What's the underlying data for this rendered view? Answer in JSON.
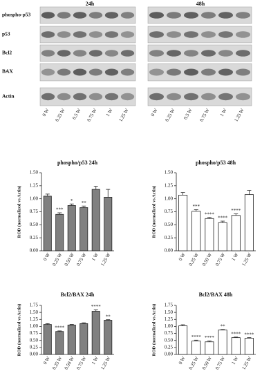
{
  "blot": {
    "time_points": [
      "24h",
      "48h"
    ],
    "rows": [
      "phospho-p53",
      "p53",
      "Bcl2",
      "BAX",
      "Actin"
    ],
    "lanes": [
      "0 W",
      "0.25 W",
      "0.5 W",
      "0.75 W",
      "1 W",
      "1.25 W"
    ]
  },
  "chart_data": [
    {
      "type": "bar",
      "title": "phospho/p53 24h",
      "y_label": "ROD (normalized vs Actin)",
      "color": "#808080",
      "categories": [
        "0 W",
        "0.25 W",
        "0.50 W",
        "0.75 W",
        "1 W",
        "1.25 W"
      ],
      "values": [
        1.05,
        0.7,
        0.87,
        0.83,
        1.18,
        1.03
      ],
      "error": [
        0.04,
        0.03,
        0.03,
        0.03,
        0.06,
        0.15
      ],
      "annotations": [
        null,
        "***",
        "*",
        "**",
        null,
        null
      ],
      "ylim": [
        0,
        1.5
      ],
      "yticks": [
        {
          "value": 0,
          "label": "0.00"
        },
        {
          "value": 0.25,
          "label": "0.25"
        },
        {
          "value": 0.5,
          "label": "0.50"
        },
        {
          "value": 0.75,
          "label": "0.75"
        },
        {
          "value": 1,
          "label": "1.00"
        },
        {
          "value": 1.25,
          "label": "1.25"
        },
        {
          "value": 1.5,
          "label": "1.50"
        }
      ],
      "grid": false
    },
    {
      "type": "bar",
      "title": "phospho/p53 48h",
      "y_label": "ROD (normalized vs Actin)",
      "color": "#ffffff",
      "categories": [
        "0 W",
        "0.25 W",
        "0.50 W",
        "0.75 W",
        "1 W",
        "1.25 W"
      ],
      "values": [
        1.07,
        0.76,
        0.62,
        0.54,
        0.68,
        1.08
      ],
      "error": [
        0.05,
        0.03,
        0.02,
        0.03,
        0.03,
        0.08
      ],
      "annotations": [
        null,
        "***",
        "****",
        "****",
        "****",
        null
      ],
      "ylim": [
        0,
        1.5
      ],
      "yticks": [
        {
          "value": 0,
          "label": "0.00"
        },
        {
          "value": 0.25,
          "label": "0.25"
        },
        {
          "value": 0.5,
          "label": "0.50"
        },
        {
          "value": 0.75,
          "label": "0.75"
        },
        {
          "value": 1,
          "label": "1.00"
        },
        {
          "value": 1.25,
          "label": "1.25"
        },
        {
          "value": 1.5,
          "label": "1.50"
        }
      ],
      "grid": false
    },
    {
      "type": "bar",
      "title": "Bcl2/BAX 24h",
      "y_label": "ROD (normalized vs Actin)",
      "color": "#808080",
      "categories": [
        "0 W",
        "0.25 W",
        "0.50 W",
        "0.75 W",
        "1 W",
        "1.25 W"
      ],
      "values": [
        1.07,
        0.82,
        1.05,
        1.1,
        1.54,
        1.22
      ],
      "error": [
        0.03,
        0.02,
        0.02,
        0.03,
        0.05,
        0.02
      ],
      "annotations": [
        null,
        "****",
        null,
        null,
        "****",
        "**"
      ],
      "ylim": [
        0,
        1.75
      ],
      "yticks": [
        {
          "value": 0,
          "label": "0.00"
        },
        {
          "value": 0.25,
          "label": "0.25"
        },
        {
          "value": 0.5,
          "label": "0.50"
        },
        {
          "value": 0.75,
          "label": "0.75"
        },
        {
          "value": 1,
          "label": "1.00"
        },
        {
          "value": 1.25,
          "label": "1.25"
        },
        {
          "value": 1.5,
          "label": "1.50"
        },
        {
          "value": 1.75,
          "label": "1.75"
        }
      ],
      "grid": false
    },
    {
      "type": "bar",
      "title": "Bcl2/BAX 48h",
      "y_label": "ROD (normalized vs Actin)",
      "color": "#ffffff",
      "categories": [
        "0 W",
        "0.25 W",
        "0.50 W",
        "0.75 W",
        "1 W",
        "1.25 W"
      ],
      "values": [
        1.02,
        0.48,
        0.45,
        0.87,
        0.6,
        0.58
      ],
      "error": [
        0.04,
        0.03,
        0.03,
        0.02,
        0.02,
        0.02
      ],
      "annotations": [
        null,
        "****",
        "****",
        "**",
        "****",
        "****"
      ],
      "ylim": [
        0,
        1.75
      ],
      "yticks": [
        {
          "value": 0,
          "label": "0.00"
        },
        {
          "value": 0.25,
          "label": "0.25"
        },
        {
          "value": 0.5,
          "label": "0.50"
        },
        {
          "value": 0.75,
          "label": "0.75"
        },
        {
          "value": 1,
          "label": "1.00"
        },
        {
          "value": 1.25,
          "label": "1.25"
        },
        {
          "value": 1.5,
          "label": "1.50"
        },
        {
          "value": 1.75,
          "label": "1.75"
        }
      ],
      "grid": false
    }
  ]
}
